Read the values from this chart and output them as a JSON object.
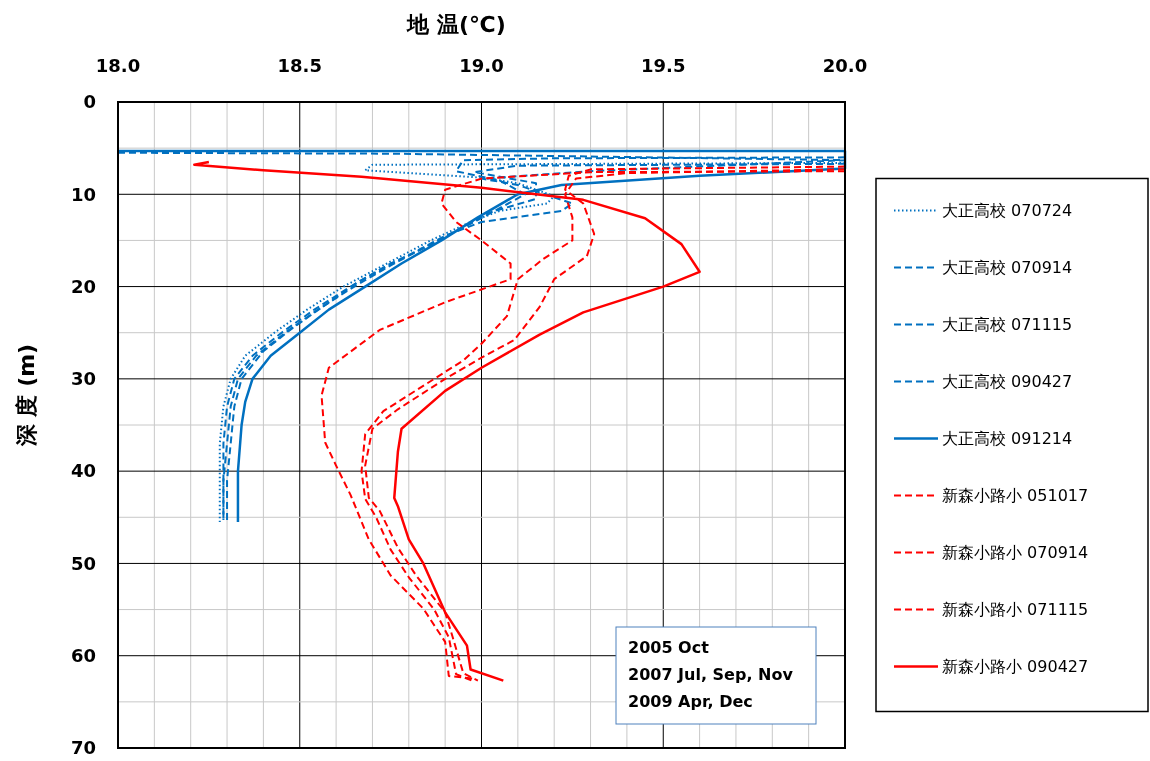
{
  "chart_data": {
    "type": "line",
    "xlabel": "地 温(℃)",
    "ylabel": "深 度 (m)",
    "xlim": [
      18,
      20
    ],
    "ylim": [
      70,
      0
    ],
    "xticks": [
      {
        "value": 18,
        "label": "18.0"
      },
      {
        "value": 18.1,
        "label": null
      },
      {
        "value": 18.2,
        "label": null
      },
      {
        "value": 18.3,
        "label": null
      },
      {
        "value": 18.4,
        "label": null
      },
      18.5,
      {
        "value": 18.6,
        "label": null
      },
      {
        "value": 18.7,
        "label": null
      },
      {
        "value": 18.8,
        "label": null
      },
      {
        "value": 18.9,
        "label": null
      },
      {
        "value": 19,
        "label": "19.0"
      },
      {
        "value": 19.1,
        "label": null
      },
      {
        "value": 19.2,
        "label": null
      },
      {
        "value": 19.3,
        "label": null
      },
      {
        "value": 19.4,
        "label": null
      },
      19.5,
      {
        "value": 19.6,
        "label": null
      },
      {
        "value": 19.7,
        "label": null
      },
      {
        "value": 19.8,
        "label": null
      },
      {
        "value": 19.9,
        "label": null
      },
      {
        "value": 20,
        "label": "20.0"
      }
    ],
    "yticks": [
      0,
      {
        "value": 5,
        "label": null
      },
      10,
      {
        "value": 15,
        "label": null
      },
      20,
      {
        "value": 25,
        "label": null
      },
      30,
      {
        "value": 35,
        "label": null
      },
      40,
      {
        "value": 45,
        "label": null
      },
      50,
      {
        "value": 55,
        "label": null
      },
      60,
      {
        "value": 65,
        "label": null
      },
      70
    ],
    "grid": true,
    "legend": "right",
    "annotations": [
      "2005 Oct\n2007 Jul, Sep, Nov\n2009 Apr, Dec"
    ],
    "series": [
      {
        "name": "大正高校 070724",
        "color": "#0070c0",
        "line_style": "dotted",
        "x": [
          20.0,
          18.7,
          18.68,
          19.0,
          19.1,
          19.2,
          19.18,
          19.05,
          18.97,
          18.86,
          18.74,
          18.62,
          18.52,
          18.43,
          18.35,
          18.31,
          18.29,
          18.28,
          18.28,
          18.28
        ],
        "values": [
          6.6,
          6.8,
          7.4,
          8.2,
          8.8,
          10.2,
          11,
          11.8,
          13,
          15,
          17.5,
          20,
          22.5,
          25,
          27.5,
          30,
          33,
          37,
          41,
          45.5
        ]
      },
      {
        "name": "大正高校 070914",
        "color": "#0070c0",
        "line_style": "dashed",
        "x": [
          20.0,
          19.2,
          18.95,
          18.93,
          19.05,
          19.12,
          19.05,
          18.98,
          18.88,
          18.76,
          18.65,
          18.55,
          18.46,
          18.38,
          18.33,
          18.31,
          18.3,
          18.29,
          18.29
        ],
        "values": [
          6.0,
          6.1,
          6.3,
          7.5,
          8.5,
          10,
          11.5,
          13,
          15,
          17.5,
          20,
          22.5,
          25,
          27.5,
          30,
          33,
          37,
          41,
          45.5
        ]
      },
      {
        "name": "大正高校 071115",
        "color": "#0070c0",
        "line_style": "dashed",
        "x": [
          20.0,
          19.1,
          18.98,
          19.15,
          19.15,
          19.02,
          18.95,
          18.86,
          18.75,
          18.64,
          18.54,
          18.45,
          18.37,
          18.32,
          18.3,
          18.29,
          18.29,
          18.29
        ],
        "values": [
          6.7,
          6.9,
          7.6,
          8.8,
          10.5,
          12,
          13.5,
          15.5,
          17.5,
          20,
          22.5,
          25,
          27.5,
          30,
          33,
          37,
          41,
          45.3
        ]
      },
      {
        "name": "大正高校 090427",
        "color": "#0070c0",
        "line_style": "dashed",
        "x": [
          18.0,
          18.75,
          20.0,
          19.3,
          19.0,
          19.1,
          19.25,
          19.22,
          19.0,
          18.9,
          18.78,
          18.66,
          18.57,
          18.48,
          18.4,
          18.34,
          18.32,
          18.31,
          18.3,
          18.3
        ],
        "values": [
          5.5,
          5.6,
          6.3,
          7.5,
          8.3,
          9,
          11,
          11.8,
          13,
          14.5,
          17,
          19.5,
          22,
          24.5,
          27,
          30,
          33,
          37,
          41,
          45.5
        ]
      },
      {
        "name": "大正高校 091214",
        "color": "#0070c0",
        "line_style": "solid",
        "x": [
          18.0,
          20.0,
          20.0,
          19.6,
          19.22,
          19.1,
          18.99,
          18.89,
          18.78,
          18.68,
          18.58,
          18.5,
          18.42,
          18.37,
          18.35,
          18.34,
          18.33,
          18.33
        ],
        "values": [
          5.3,
          5.3,
          7.2,
          8.0,
          9.0,
          10,
          12.5,
          15,
          17.5,
          20,
          22.5,
          25,
          27.5,
          30,
          32.5,
          35,
          40,
          45.5
        ]
      },
      {
        "name": "新森小路小 051017",
        "color": "#ff0000",
        "line_style": "dashed",
        "x": [
          20.0,
          19.3,
          19.0,
          18.9,
          18.89,
          18.93,
          19.0,
          19.08,
          19.08,
          18.9,
          18.72,
          18.58,
          18.56,
          18.57,
          18.6,
          18.64,
          18.69,
          18.75,
          18.84,
          18.9,
          18.91,
          18.98
        ],
        "values": [
          7.5,
          7.6,
          8.3,
          9.5,
          11,
          13,
          15,
          17.5,
          19.2,
          21.7,
          24.7,
          28.8,
          31.8,
          36.9,
          39.4,
          42.6,
          47.4,
          51.3,
          54.9,
          58.5,
          62.2,
          62.5
        ]
      },
      {
        "name": "新森小路小 070914",
        "color": "#ff0000",
        "line_style": "dashed",
        "x": [
          20.0,
          19.3,
          19.24,
          19.23,
          19.28,
          19.31,
          19.29,
          19.2,
          19.16,
          19.09,
          19.0,
          18.9,
          18.77,
          18.7,
          18.68,
          18.69,
          18.72,
          18.77,
          18.82,
          18.9,
          18.92,
          18.95,
          18.99
        ],
        "values": [
          7.0,
          7.3,
          8,
          9.5,
          11,
          14.3,
          16.7,
          19.2,
          22.2,
          25.8,
          27.7,
          30,
          33.3,
          35.4,
          39.4,
          42.9,
          44.3,
          48.3,
          51.3,
          55.3,
          57.9,
          61.9,
          62.7
        ]
      },
      {
        "name": "新森小路小 071115",
        "color": "#ff0000",
        "line_style": "dashed",
        "x": [
          20.0,
          19.4,
          19.26,
          19.23,
          19.25,
          19.25,
          19.17,
          19.1,
          19.07,
          19.0,
          18.95,
          18.85,
          18.73,
          18.68,
          18.67,
          18.68,
          18.71,
          18.75,
          18.8,
          18.87,
          18.91,
          18.93,
          18.98
        ],
        "values": [
          7.3,
          7.7,
          8.3,
          10,
          12.5,
          15,
          17,
          19.2,
          23.2,
          26.2,
          28,
          30.5,
          33.5,
          36,
          40,
          43,
          45,
          48.5,
          51.5,
          55,
          58,
          62,
          62.8
        ]
      },
      {
        "name": "新森小路小 090427",
        "color": "#ff0000",
        "line_style": "solid",
        "x": [
          18.25,
          18.21,
          18.4,
          18.67,
          19.0,
          19.28,
          19.45,
          19.55,
          19.6,
          19.5,
          19.28,
          19.16,
          19.0,
          18.9,
          18.78,
          18.77,
          18.76,
          18.77,
          18.8,
          18.84,
          18.9,
          18.96,
          18.97,
          19.06
        ],
        "values": [
          6.5,
          6.8,
          7.4,
          8.1,
          9.3,
          10.6,
          12.6,
          15.4,
          18.4,
          20,
          22.8,
          25.2,
          28.8,
          31.3,
          35.4,
          37.9,
          42.9,
          43.8,
          47.4,
          50,
          55.3,
          58.9,
          61.5,
          62.7
        ]
      }
    ]
  }
}
